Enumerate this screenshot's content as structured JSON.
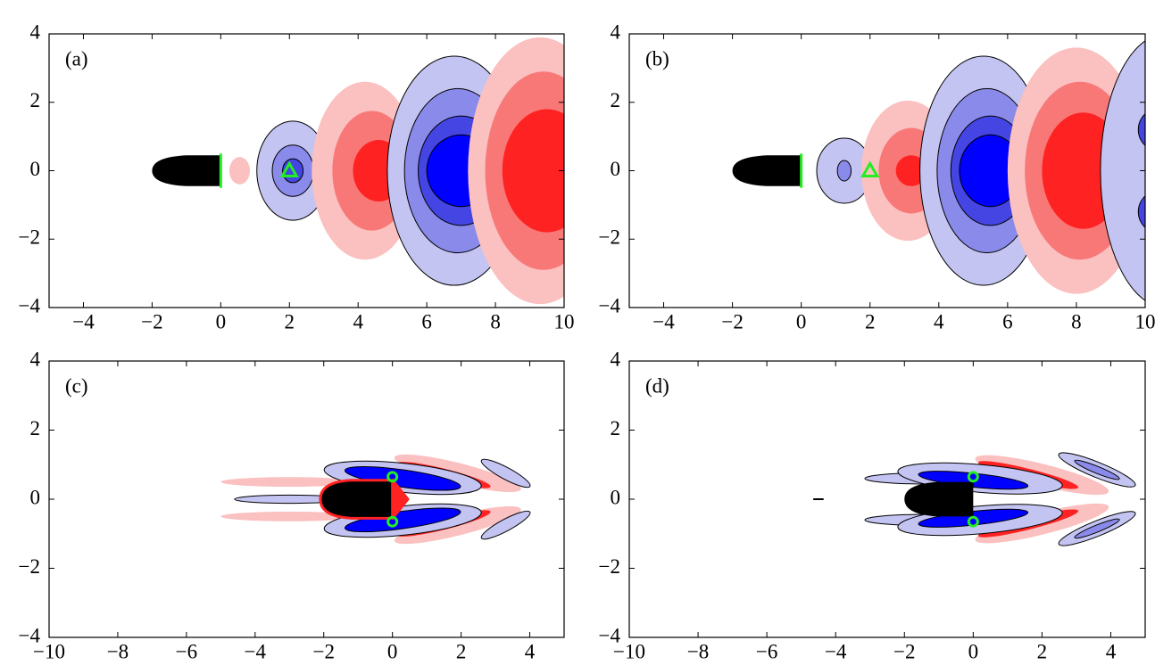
{
  "chart_data": [
    {
      "type": "contour",
      "label": "(a)",
      "xlim": [
        -5,
        10
      ],
      "ylim": [
        -4,
        4
      ],
      "xticks": [
        {
          "value": -4,
          "label": "−4"
        },
        {
          "value": -2,
          "label": "−2"
        },
        0,
        2,
        4,
        6,
        8,
        10
      ],
      "yticks": [
        {
          "value": -4,
          "label": "−4"
        },
        {
          "value": -2,
          "label": "−2"
        },
        0,
        2,
        4
      ],
      "marker": "triangle",
      "markers": {
        "x": [
          2
        ],
        "y": [
          0
        ]
      }
    },
    {
      "type": "contour",
      "label": "(b)",
      "xlim": [
        -5,
        10
      ],
      "ylim": [
        -4,
        4
      ],
      "xticks": [
        {
          "value": -4,
          "label": "−4"
        },
        {
          "value": -2,
          "label": "−2"
        },
        0,
        2,
        4,
        6,
        8,
        10
      ],
      "yticks": [
        {
          "value": -4,
          "label": "−4"
        },
        {
          "value": -2,
          "label": "−2"
        },
        0,
        2,
        4
      ],
      "marker": "triangle",
      "markers": {
        "x": [
          2
        ],
        "y": [
          0
        ]
      }
    },
    {
      "type": "contour",
      "label": "(c)",
      "xlim": [
        -10,
        5
      ],
      "ylim": [
        -4,
        4
      ],
      "xticks": [
        {
          "value": -10,
          "label": "−10"
        },
        {
          "value": -8,
          "label": "−8"
        },
        {
          "value": -6,
          "label": "−6"
        },
        {
          "value": -4,
          "label": "−4"
        },
        {
          "value": -2,
          "label": "−2"
        },
        0,
        2,
        4
      ],
      "yticks": [
        {
          "value": -4,
          "label": "−4"
        },
        {
          "value": -2,
          "label": "−2"
        },
        0,
        2,
        4
      ],
      "marker": "circle",
      "markers": {
        "x": [
          0,
          0
        ],
        "y": [
          0.65,
          -0.65
        ]
      }
    },
    {
      "type": "contour",
      "label": "(d)",
      "xlim": [
        -10,
        5
      ],
      "ylim": [
        -4,
        4
      ],
      "xticks": [
        {
          "value": -10,
          "label": "−10"
        },
        {
          "value": -8,
          "label": "−8"
        },
        {
          "value": -6,
          "label": "−6"
        },
        {
          "value": -4,
          "label": "−4"
        },
        {
          "value": -2,
          "label": "−2"
        },
        0,
        2,
        4
      ],
      "yticks": [
        {
          "value": -4,
          "label": "−4"
        },
        {
          "value": -2,
          "label": "−2"
        },
        0,
        2,
        4
      ],
      "marker": "circle",
      "markers": {
        "x": [
          0,
          0
        ],
        "y": [
          0.65,
          -0.65
        ]
      }
    }
  ]
}
